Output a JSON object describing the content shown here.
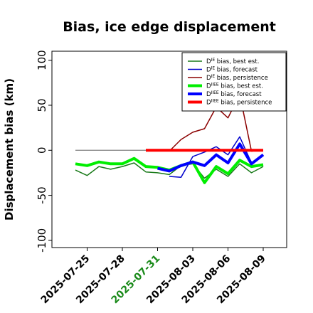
{
  "chart_data": {
    "type": "line",
    "title": "Bias, ice edge displacement",
    "xlabel": "",
    "ylabel": "Displacement bias (km)",
    "xlim": [
      "2025-07-22",
      "2025-08-11"
    ],
    "ylim": [
      -108,
      110
    ],
    "y_ticks": [
      100,
      50,
      0,
      -50,
      -100
    ],
    "y_tick_labels": [
      "100",
      "50",
      "0",
      "-50",
      "-100"
    ],
    "x_ticks": [
      "2025-07-25",
      "2025-07-28",
      "2025-07-31",
      "2025-08-03",
      "2025-08-06",
      "2025-08-09"
    ],
    "x_tick_labels": [
      "2025-07-25",
      "2025-07-28",
      "2025-07-31",
      "2025-08-03",
      "2025-08-06",
      "2025-08-09"
    ],
    "x_tick_colors": [
      "#000000",
      "#000000",
      "#1a8a1a",
      "#000000",
      "#000000",
      "#000000"
    ],
    "legend_position": "top-right",
    "grid": false,
    "zero_line_color": "#808080",
    "series": [
      {
        "name_main": "D",
        "name_sup": "IE",
        "name_rest": " bias, best est.",
        "color": "#1a7a1a",
        "width": "thin",
        "x": [
          "2025-07-24",
          "2025-07-25",
          "2025-07-26",
          "2025-07-27",
          "2025-07-28",
          "2025-07-29",
          "2025-07-30",
          "2025-07-31",
          "2025-08-01",
          "2025-08-02",
          "2025-08-03",
          "2025-08-04",
          "2025-08-05",
          "2025-08-06",
          "2025-08-07",
          "2025-08-08",
          "2025-08-09"
        ],
        "y": [
          -22,
          -28,
          -18,
          -21,
          -18,
          -14,
          -24,
          -25,
          -27,
          -17,
          -15,
          -31,
          -21,
          -29,
          -15,
          -25,
          -18
        ]
      },
      {
        "name_main": "D",
        "name_sup": "IE",
        "name_rest": " bias, forecast",
        "color": "#0000cc",
        "width": "thin",
        "x": [
          "2025-08-01",
          "2025-08-02",
          "2025-08-03",
          "2025-08-04",
          "2025-08-05",
          "2025-08-06",
          "2025-08-07",
          "2025-08-08",
          "2025-08-09"
        ],
        "y": [
          -29,
          -30,
          -7,
          -2,
          4,
          -5,
          15,
          -14,
          -5
        ]
      },
      {
        "name_main": "D",
        "name_sup": "IE",
        "name_rest": " bias, persistence",
        "color": "#8b0000",
        "width": "thin",
        "x": [
          "2025-08-01",
          "2025-08-02",
          "2025-08-03",
          "2025-08-04",
          "2025-08-05",
          "2025-08-06",
          "2025-08-07",
          "2025-08-08",
          "2025-08-09"
        ],
        "y": [
          -1,
          12,
          20,
          24,
          48,
          36,
          62,
          -1,
          0
        ]
      },
      {
        "name_main": "D",
        "name_sup": "IIEE",
        "name_rest": " bias, best est.",
        "color": "#00ee00",
        "width": "thick",
        "x": [
          "2025-07-24",
          "2025-07-25",
          "2025-07-26",
          "2025-07-27",
          "2025-07-28",
          "2025-07-29",
          "2025-07-30",
          "2025-07-31",
          "2025-08-01",
          "2025-08-02",
          "2025-08-03",
          "2025-08-04",
          "2025-08-05",
          "2025-08-06",
          "2025-08-07",
          "2025-08-08",
          "2025-08-09"
        ],
        "y": [
          -15,
          -17,
          -13,
          -15,
          -15,
          -9,
          -18,
          -19,
          -22,
          -17,
          -13,
          -36,
          -18,
          -26,
          -11,
          -18,
          -16
        ]
      },
      {
        "name_main": "D",
        "name_sup": "IIEE",
        "name_rest": " bias, forecast",
        "color": "#0000ff",
        "width": "thick",
        "x": [
          "2025-07-31",
          "2025-08-01",
          "2025-08-02",
          "2025-08-03",
          "2025-08-04",
          "2025-08-05",
          "2025-08-06",
          "2025-08-07",
          "2025-08-08",
          "2025-08-09"
        ],
        "y": [
          -20,
          -23,
          -17,
          -13,
          -17,
          -5,
          -14,
          7,
          -15,
          -5
        ]
      },
      {
        "name_main": "D",
        "name_sup": "IIEE",
        "name_rest": " bias, persistence",
        "color": "#ff0000",
        "width": "thick",
        "x": [
          "2025-07-30",
          "2025-08-09"
        ],
        "y": [
          0,
          0
        ]
      }
    ]
  }
}
